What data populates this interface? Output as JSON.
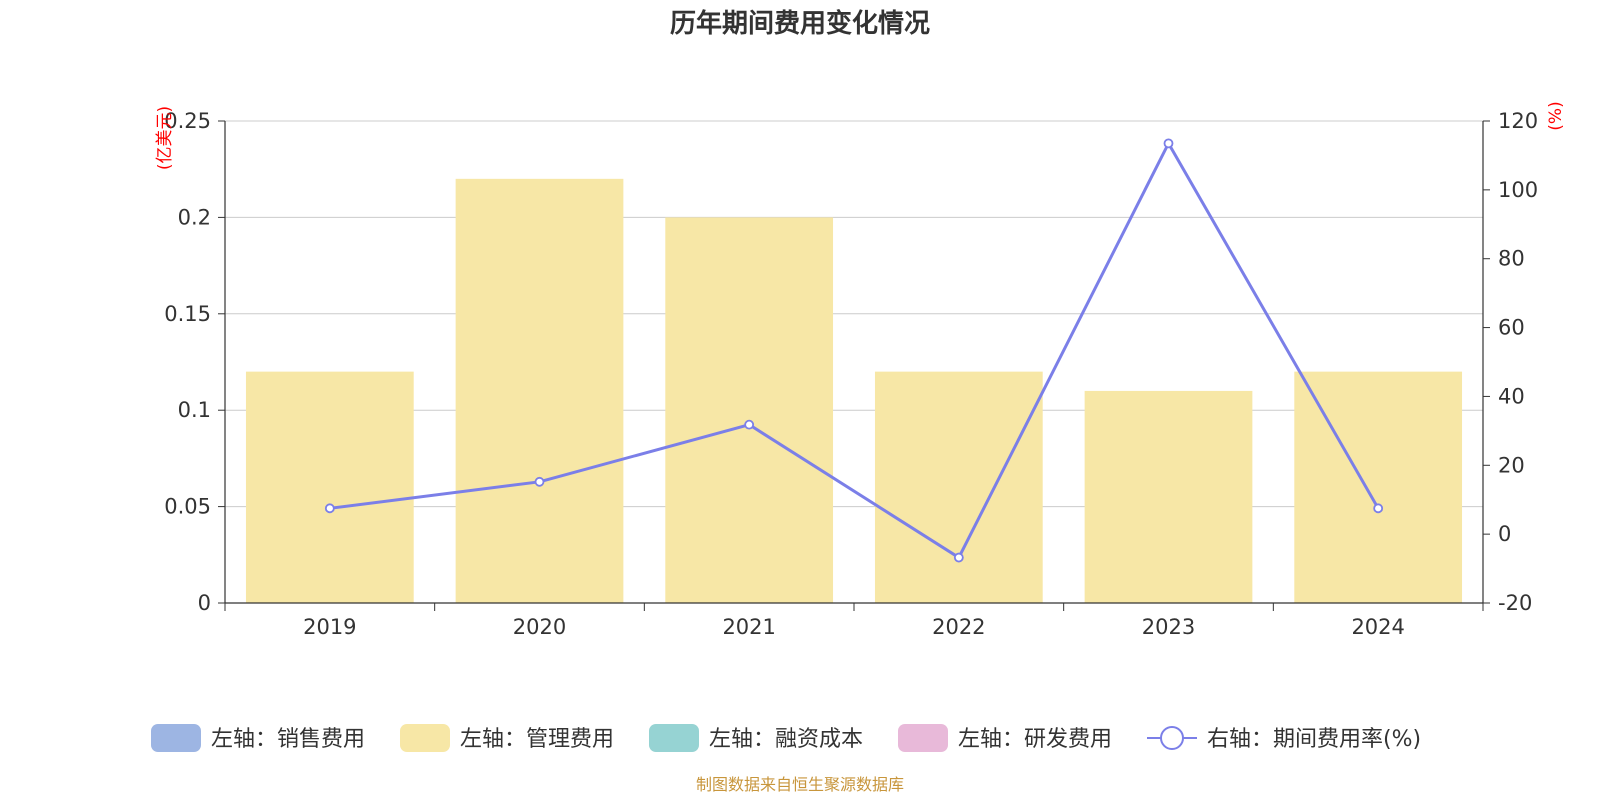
{
  "chart_data": {
    "type": "bar",
    "title": "历年期间费用变化情况",
    "categories": [
      "2019",
      "2020",
      "2021",
      "2022",
      "2023",
      "2024"
    ],
    "left_axis": {
      "unit_label": "(亿美元)",
      "ticks": [
        "0",
        "0.05",
        "0.1",
        "0.15",
        "0.2",
        "0.25"
      ],
      "ylim": [
        0,
        0.25
      ]
    },
    "right_axis": {
      "unit_label": "(%)",
      "ticks": [
        "-20",
        "0",
        "20",
        "40",
        "60",
        "80",
        "100",
        "120"
      ],
      "ylim": [
        -20,
        120
      ]
    },
    "series": [
      {
        "name": "左轴：销售费用",
        "type": "bar",
        "axis": "left",
        "color": "#9db5e3",
        "values": [
          0,
          0,
          0,
          0,
          0,
          0
        ]
      },
      {
        "name": "左轴：管理费用",
        "type": "bar",
        "axis": "left",
        "color": "#f7e7a6",
        "values": [
          0.12,
          0.22,
          0.2,
          0.12,
          0.11,
          0.12
        ]
      },
      {
        "name": "左轴：融资成本",
        "type": "bar",
        "axis": "left",
        "color": "#96d3d3",
        "values": [
          0,
          0,
          0,
          0,
          0,
          0
        ]
      },
      {
        "name": "左轴：研发费用",
        "type": "bar",
        "axis": "left",
        "color": "#e8b9d9",
        "values": [
          0,
          0,
          0,
          0,
          0,
          0
        ]
      },
      {
        "name": "右轴：期间费用率(%)",
        "type": "line",
        "axis": "right",
        "color": "#7b7fe8",
        "values": [
          7.5,
          15.2,
          31.8,
          -6.8,
          113.5,
          7.5
        ]
      }
    ],
    "grid": true,
    "legend_position": "bottom"
  },
  "source_text": "制图数据来自恒生聚源数据库"
}
